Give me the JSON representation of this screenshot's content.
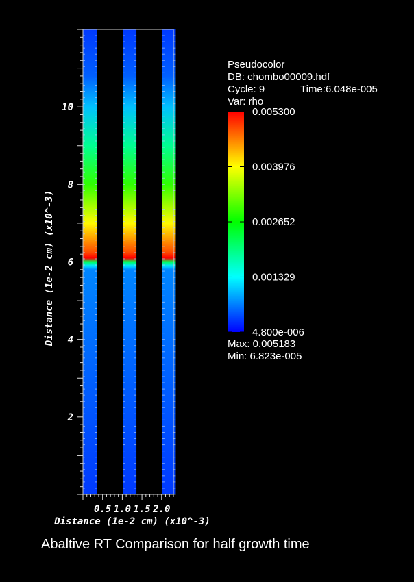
{
  "chart_data": {
    "type": "heatmap",
    "plot_type": "Pseudocolor",
    "database": "DB: chombo00009.hdf",
    "cycle_label": "Cycle: 9",
    "time_label": "Time:6.048e-005",
    "var_label": "Var: rho",
    "xlabel": "Distance (1e-2 cm) (x10^-3)",
    "ylabel": "Distance (1e-2 cm) (x10^-3)",
    "xlim": [
      0.0,
      2.3
    ],
    "ylim": [
      0.0,
      12.0
    ],
    "x_ticks": [
      "0.5",
      "1.0",
      "1.5",
      "2.0"
    ],
    "x_tick_values": [
      0.5,
      1.0,
      1.5,
      2.0
    ],
    "y_ticks": [
      "2",
      "4",
      "6",
      "8",
      "10"
    ],
    "y_tick_values": [
      2,
      4,
      6,
      8,
      10
    ],
    "colorbar": {
      "tick_labels": [
        "0.005300",
        "0.003976",
        "0.002652",
        "0.001329",
        "4.800e-006"
      ],
      "tick_values": [
        0.0053,
        0.003976,
        0.002652,
        0.001329,
        4.8e-06
      ],
      "range": [
        4.8e-06,
        0.0053
      ],
      "colormap": [
        "#0000ff",
        "#00ffff",
        "#00ff00",
        "#ffff00",
        "#ff0000"
      ]
    },
    "max_label": "Max:  0.005183",
    "min_label": "Min:  6.823e-005",
    "columns": [
      {
        "x_range": [
          0.0,
          0.36
        ]
      },
      {
        "x_range": [
          1.02,
          1.36
        ]
      },
      {
        "x_range": [
          2.02,
          2.36
        ]
      }
    ],
    "rho_profile": [
      {
        "y": 0.0,
        "rho": 0.0003
      },
      {
        "y": 5.8,
        "rho": 0.0007
      },
      {
        "y": 5.9,
        "rho": 0.0012
      },
      {
        "y": 6.0,
        "rho": 0.0022
      },
      {
        "y": 6.1,
        "rho": 0.0053
      },
      {
        "y": 6.25,
        "rho": 0.0049
      },
      {
        "y": 7.0,
        "rho": 0.004
      },
      {
        "y": 8.0,
        "rho": 0.0029
      },
      {
        "y": 9.0,
        "rho": 0.0019
      },
      {
        "y": 10.0,
        "rho": 0.001
      },
      {
        "y": 10.8,
        "rho": 0.0005
      },
      {
        "y": 12.0,
        "rho": 0.0003
      }
    ]
  },
  "caption": "Abaltive RT Comparison for half growth time"
}
